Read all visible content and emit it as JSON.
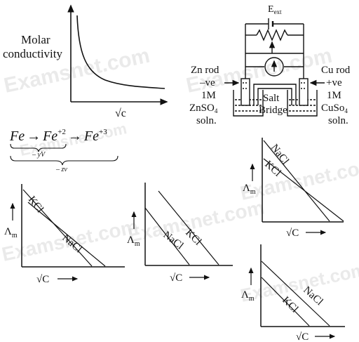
{
  "molar_plot": {
    "ylabel_line1": "Molar",
    "ylabel_line2": "conductivity",
    "xlabel": "√c"
  },
  "cell": {
    "e_ext": "E",
    "e_ext_sub": "ext",
    "zn_rod": "Zn rod",
    "zn_sign": "–ve",
    "zn_conc": "1M",
    "zn_soln": "ZnSO",
    "zn_soln_sub": "4",
    "zn_soln2": "soln.",
    "cu_rod": "Cu rod",
    "cu_sign": "+ve",
    "cu_conc": "1M",
    "cu_soln": "CuSo",
    "cu_soln_sub": "4",
    "cu_soln2": "soln.",
    "salt_bridge_1": "Salt",
    "salt_bridge_2": "Bridge"
  },
  "equation": {
    "fe1": "Fe",
    "fe2": "Fe",
    "fe2_sup": "+2",
    "fe3": "Fe",
    "fe3_sup": "+3",
    "arrow1": "→",
    "arrow2": "→",
    "under1": "– yV",
    "under2": "– zv"
  },
  "graphs": [
    {
      "ylabel": "Λ",
      "ylabel_sub": "m",
      "xlabel": "√C",
      "line1": "KCl",
      "line2": "NaCl"
    },
    {
      "ylabel": "Λ",
      "ylabel_sub": "m",
      "xlabel": "√C",
      "line1": "NaCl",
      "line2": "KCl"
    },
    {
      "ylabel": "Λ",
      "ylabel_sub": "m",
      "xlabel": "√C",
      "line1": "NaCl",
      "line2": "KCl"
    },
    {
      "ylabel": "Λ",
      "ylabel_sub": "m",
      "xlabel": "√C",
      "line1": "KCl",
      "line2": "NaCl"
    }
  ],
  "watermark": "Examsnet.com"
}
